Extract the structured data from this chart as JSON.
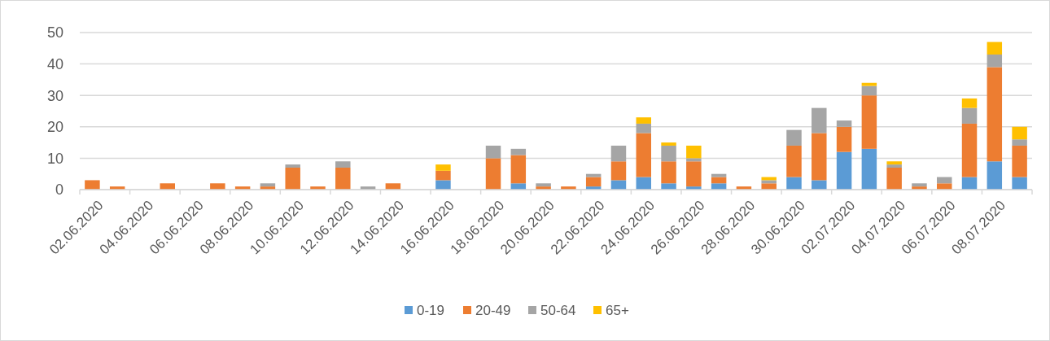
{
  "chart_data": {
    "type": "bar",
    "stacked": true,
    "categories": [
      "02.06.2020",
      null,
      "04.06.2020",
      null,
      "06.06.2020",
      null,
      "08.06.2020",
      null,
      "10.06.2020",
      null,
      "12.06.2020",
      null,
      "14.06.2020",
      null,
      "16.06.2020",
      null,
      "18.06.2020",
      null,
      "20.06.2020",
      null,
      "22.06.2020",
      null,
      "24.06.2020",
      null,
      "26.06.2020",
      null,
      "28.06.2020",
      null,
      "30.06.2020",
      null,
      "02.07.2020",
      null,
      "04.07.2020",
      null,
      "06.07.2020",
      null,
      "08.07.2020",
      null
    ],
    "series": [
      {
        "name": "0-19",
        "color": "#5b9bd5",
        "values": [
          0,
          0,
          0,
          0,
          0,
          0,
          0,
          0,
          0,
          0,
          0,
          0,
          0,
          0,
          3,
          0,
          0,
          2,
          0,
          0,
          1,
          3,
          4,
          2,
          1,
          2,
          0,
          0,
          4,
          3,
          12,
          13,
          0,
          0,
          0,
          4,
          9,
          4
        ]
      },
      {
        "name": "20-49",
        "color": "#ed7d31",
        "values": [
          3,
          1,
          0,
          2,
          0,
          2,
          1,
          1,
          7,
          1,
          7,
          0,
          2,
          0,
          3,
          0,
          10,
          9,
          1,
          1,
          3,
          6,
          14,
          7,
          8,
          2,
          1,
          2,
          10,
          15,
          8,
          17,
          7,
          1,
          2,
          17,
          30,
          10
        ]
      },
      {
        "name": "50-64",
        "color": "#a5a5a5",
        "values": [
          0,
          0,
          0,
          0,
          0,
          0,
          0,
          1,
          1,
          0,
          2,
          1,
          0,
          0,
          0,
          0,
          4,
          2,
          1,
          0,
          1,
          5,
          3,
          5,
          1,
          1,
          0,
          1,
          5,
          8,
          2,
          3,
          1,
          1,
          2,
          5,
          4,
          2
        ]
      },
      {
        "name": "65+",
        "color": "#ffc000",
        "values": [
          0,
          0,
          0,
          0,
          0,
          0,
          0,
          0,
          0,
          0,
          0,
          0,
          0,
          0,
          2,
          0,
          0,
          0,
          0,
          0,
          0,
          0,
          2,
          1,
          4,
          0,
          0,
          1,
          0,
          0,
          0,
          1,
          1,
          0,
          0,
          3,
          4,
          4
        ]
      }
    ],
    "ylim": [
      0,
      50
    ],
    "yticks": [
      0,
      10,
      20,
      30,
      40,
      50
    ],
    "grid": "y",
    "legend": "bottom"
  }
}
